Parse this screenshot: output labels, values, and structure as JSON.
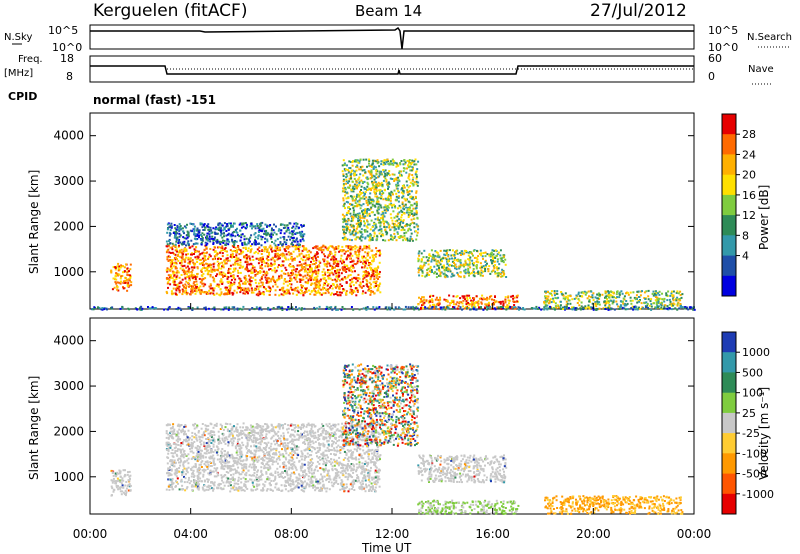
{
  "header": {
    "station": "Kerguelen (fitACF)",
    "beam": "Beam 14",
    "date": "27/Jul/2012"
  },
  "panels": {
    "nsky": {
      "label": "N.Sky",
      "ticks": [
        "10^5",
        "10^0"
      ],
      "right_label": "N.Search"
    },
    "freq": {
      "label_top": "Freq.",
      "label_unit": "[MHz]",
      "left_ticks": [
        "18",
        "8"
      ],
      "right_ticks": [
        "60",
        "0"
      ],
      "right_label": "Nave"
    },
    "cpid": {
      "label": "CPID",
      "value": "normal (fast) -151"
    }
  },
  "chart_data": [
    {
      "type": "heatmap",
      "name": "power",
      "ylabel": "Slant Range [km]",
      "xlabel": "Time UT",
      "xlim_hours": [
        0,
        24
      ],
      "ylim_km": [
        180,
        4500
      ],
      "y_ticks": [
        "1000",
        "2000",
        "3000",
        "4000"
      ],
      "x_ticks": [
        "00:00",
        "04:00",
        "08:00",
        "12:00",
        "16:00",
        "20:00",
        "00:00"
      ],
      "colorbar": {
        "label": "Power [dB]",
        "ticks": [
          "28",
          "24",
          "20",
          "16",
          "12",
          "8",
          "4"
        ],
        "colors": [
          "#e60000",
          "#ff6a00",
          "#ffb000",
          "#ffe000",
          "#7fcc3f",
          "#2e8b57",
          "#3399aa",
          "#1f4fa8",
          "#0000e0"
        ]
      },
      "regions": [
        {
          "t0": 0.8,
          "t1": 1.6,
          "r0": 600,
          "r1": 1200,
          "level": "high"
        },
        {
          "t0": 3.0,
          "t1": 11.5,
          "r0": 500,
          "r1": 1600,
          "level": "high"
        },
        {
          "t0": 3.0,
          "t1": 8.5,
          "r0": 1600,
          "r1": 2100,
          "level": "low"
        },
        {
          "t0": 10.0,
          "t1": 13.0,
          "r0": 1700,
          "r1": 3500,
          "level": "mid"
        },
        {
          "t0": 13.0,
          "t1": 16.5,
          "r0": 900,
          "r1": 1500,
          "level": "mid"
        },
        {
          "t0": 13.0,
          "t1": 17.0,
          "r0": 200,
          "r1": 500,
          "level": "high"
        },
        {
          "t0": 18.0,
          "t1": 23.5,
          "r0": 200,
          "r1": 600,
          "level": "mid"
        },
        {
          "t0": 0.0,
          "t1": 24.0,
          "r0": 180,
          "r1": 250,
          "level": "low"
        }
      ]
    },
    {
      "type": "heatmap",
      "name": "velocity",
      "ylabel": "Slant Range [km]",
      "xlabel": "Time UT",
      "xlim_hours": [
        0,
        24
      ],
      "ylim_km": [
        180,
        4500
      ],
      "y_ticks": [
        "1000",
        "2000",
        "3000",
        "4000"
      ],
      "x_ticks": [
        "00:00",
        "04:00",
        "08:00",
        "12:00",
        "16:00",
        "20:00",
        "00:00"
      ],
      "colorbar": {
        "label": "Velocity [m s⁻¹]",
        "ticks": [
          "1000",
          "500",
          "100",
          "25",
          "-25",
          "-100",
          "-500",
          "-1000"
        ],
        "colors": [
          "#1e3cb4",
          "#3399aa",
          "#2e8b57",
          "#7fcc3f",
          "#c8c8c8",
          "#ffcc33",
          "#ff9900",
          "#ff5500",
          "#e60000"
        ]
      },
      "regions": [
        {
          "t0": 0.8,
          "t1": 1.6,
          "r0": 600,
          "r1": 1200,
          "level": "grey"
        },
        {
          "t0": 3.0,
          "t1": 11.5,
          "r0": 700,
          "r1": 2200,
          "level": "grey"
        },
        {
          "t0": 10.0,
          "t1": 13.0,
          "r0": 1700,
          "r1": 3500,
          "level": "mixed"
        },
        {
          "t0": 13.0,
          "t1": 16.5,
          "r0": 900,
          "r1": 1500,
          "level": "grey"
        },
        {
          "t0": 13.0,
          "t1": 17.0,
          "r0": 200,
          "r1": 500,
          "level": "green"
        },
        {
          "t0": 18.0,
          "t1": 23.5,
          "r0": 200,
          "r1": 600,
          "level": "orange"
        }
      ]
    }
  ],
  "colors": {
    "axis": "#000000"
  }
}
